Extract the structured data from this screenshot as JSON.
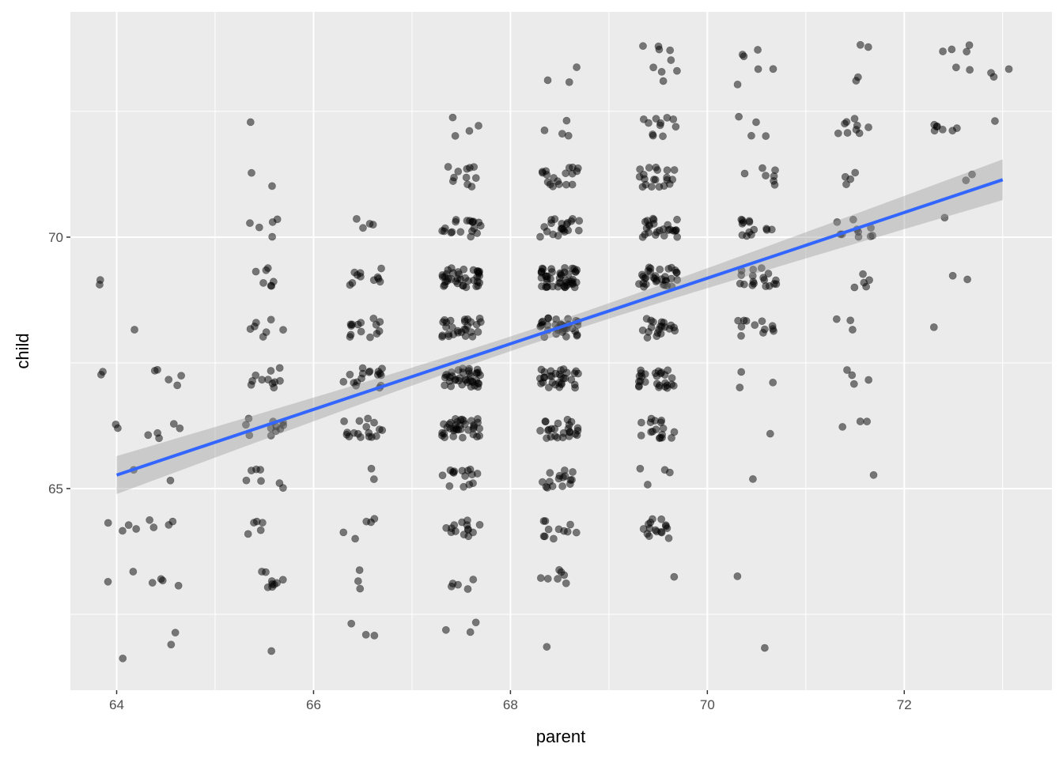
{
  "chart_data": {
    "type": "scatter",
    "title": "",
    "xlabel": "parent",
    "ylabel": "child",
    "xlim": [
      63.53,
      73.5
    ],
    "ylim": [
      60.99,
      74.48
    ],
    "x_ticks": [
      64,
      66,
      68,
      70,
      72
    ],
    "x_tick_labels": [
      "64",
      "66",
      "68",
      "70",
      "72"
    ],
    "x_minor_ticks": [
      65,
      67,
      69,
      71,
      73
    ],
    "y_ticks": [
      65,
      70
    ],
    "y_tick_labels": [
      "65",
      "70"
    ],
    "y_minor_ticks": [
      62.5,
      67.5,
      72.5
    ],
    "grid": true,
    "legend": "none",
    "jitter": {
      "width": 0.2,
      "height": 0.2
    },
    "point_color": "#000000",
    "point_alpha": 0.5,
    "smooth": {
      "method": "lm",
      "se": true,
      "line_color": "#3366FF",
      "band_color": "#999999"
    },
    "panel_background": "#EBEBEB",
    "parent_levels": [
      64.0,
      64.5,
      65.5,
      66.5,
      67.5,
      68.5,
      69.5,
      70.5,
      71.5,
      72.5,
      73.0
    ],
    "child_levels": [
      61.7,
      62.2,
      63.2,
      64.2,
      65.2,
      66.2,
      67.2,
      68.2,
      69.2,
      70.2,
      71.2,
      72.2,
      73.2,
      73.7
    ],
    "counts": [
      [
        1,
        1,
        1,
        0,
        0,
        1,
        0,
        1,
        0,
        0,
        0
      ],
      [
        0,
        1,
        0,
        3,
        3,
        0,
        0,
        0,
        0,
        0,
        0
      ],
      [
        2,
        4,
        9,
        3,
        5,
        7,
        1,
        1,
        0,
        0,
        0
      ],
      [
        4,
        4,
        5,
        5,
        14,
        11,
        16,
        0,
        0,
        0,
        0
      ],
      [
        1,
        1,
        7,
        2,
        15,
        16,
        4,
        1,
        1,
        0,
        0
      ],
      [
        2,
        5,
        11,
        17,
        36,
        25,
        17,
        1,
        3,
        0,
        0
      ],
      [
        2,
        5,
        11,
        17,
        38,
        31,
        27,
        3,
        4,
        0,
        0
      ],
      [
        1,
        0,
        7,
        14,
        28,
        34,
        20,
        12,
        3,
        1,
        0
      ],
      [
        2,
        0,
        7,
        11,
        38,
        48,
        33,
        18,
        5,
        2,
        0
      ],
      [
        0,
        0,
        5,
        4,
        19,
        21,
        25,
        14,
        10,
        1,
        0
      ],
      [
        0,
        0,
        2,
        0,
        11,
        18,
        20,
        7,
        4,
        2,
        0
      ],
      [
        0,
        0,
        1,
        0,
        4,
        4,
        11,
        4,
        9,
        7,
        1
      ],
      [
        0,
        0,
        0,
        0,
        0,
        3,
        4,
        3,
        2,
        2,
        3
      ],
      [
        0,
        0,
        0,
        0,
        0,
        0,
        5,
        3,
        2,
        4,
        0
      ]
    ]
  }
}
